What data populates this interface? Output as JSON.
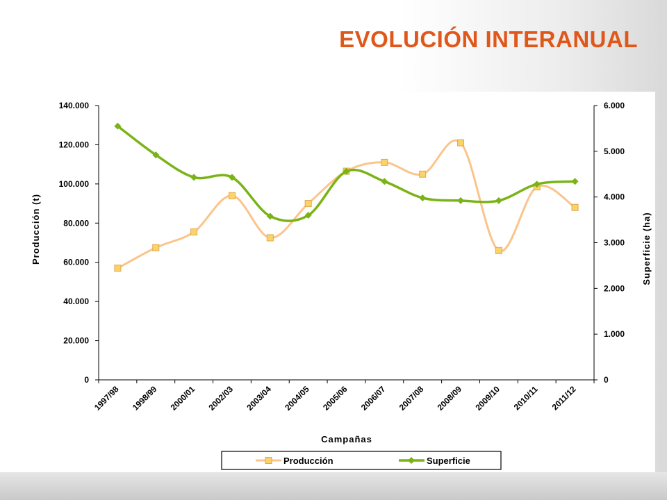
{
  "slide": {
    "title": "EVOLUCIÓN INTERANUAL"
  },
  "chart_data": {
    "type": "line",
    "title": "",
    "xlabel": "Campañas",
    "ylabel": "Producción (t)",
    "y2label": "Superficie (ha)",
    "categories": [
      "1997/98",
      "1998/99",
      "2000/01",
      "2002/03",
      "2003/04",
      "2004/05",
      "2005/06",
      "2006/07",
      "2007/08",
      "2008/09",
      "2009/10",
      "2010/11",
      "2011/12"
    ],
    "ylim": [
      0,
      140000
    ],
    "y2lim": [
      0,
      6000
    ],
    "yticks": [
      "0",
      "20.000",
      "40.000",
      "60.000",
      "80.000",
      "100.000",
      "120.000",
      "140.000"
    ],
    "y2ticks": [
      "0",
      "1.000",
      "2.000",
      "3.000",
      "4.000",
      "5.000",
      "6.000"
    ],
    "grid": false,
    "legend_position": "bottom",
    "series": [
      {
        "name": "Producción",
        "axis": "left",
        "color": "#fbc48a",
        "marker_color": "#fbd36a",
        "values": [
          57000,
          67500,
          75500,
          94000,
          72500,
          90000,
          106500,
          111000,
          105000,
          121000,
          66000,
          98500,
          88000
        ]
      },
      {
        "name": "Superficie",
        "axis": "right",
        "color": "#7ab317",
        "marker_color": "#7ab317",
        "values": [
          5550,
          4920,
          4430,
          4430,
          3580,
          3600,
          4560,
          4340,
          3980,
          3920,
          3920,
          4280,
          4340
        ]
      }
    ]
  }
}
